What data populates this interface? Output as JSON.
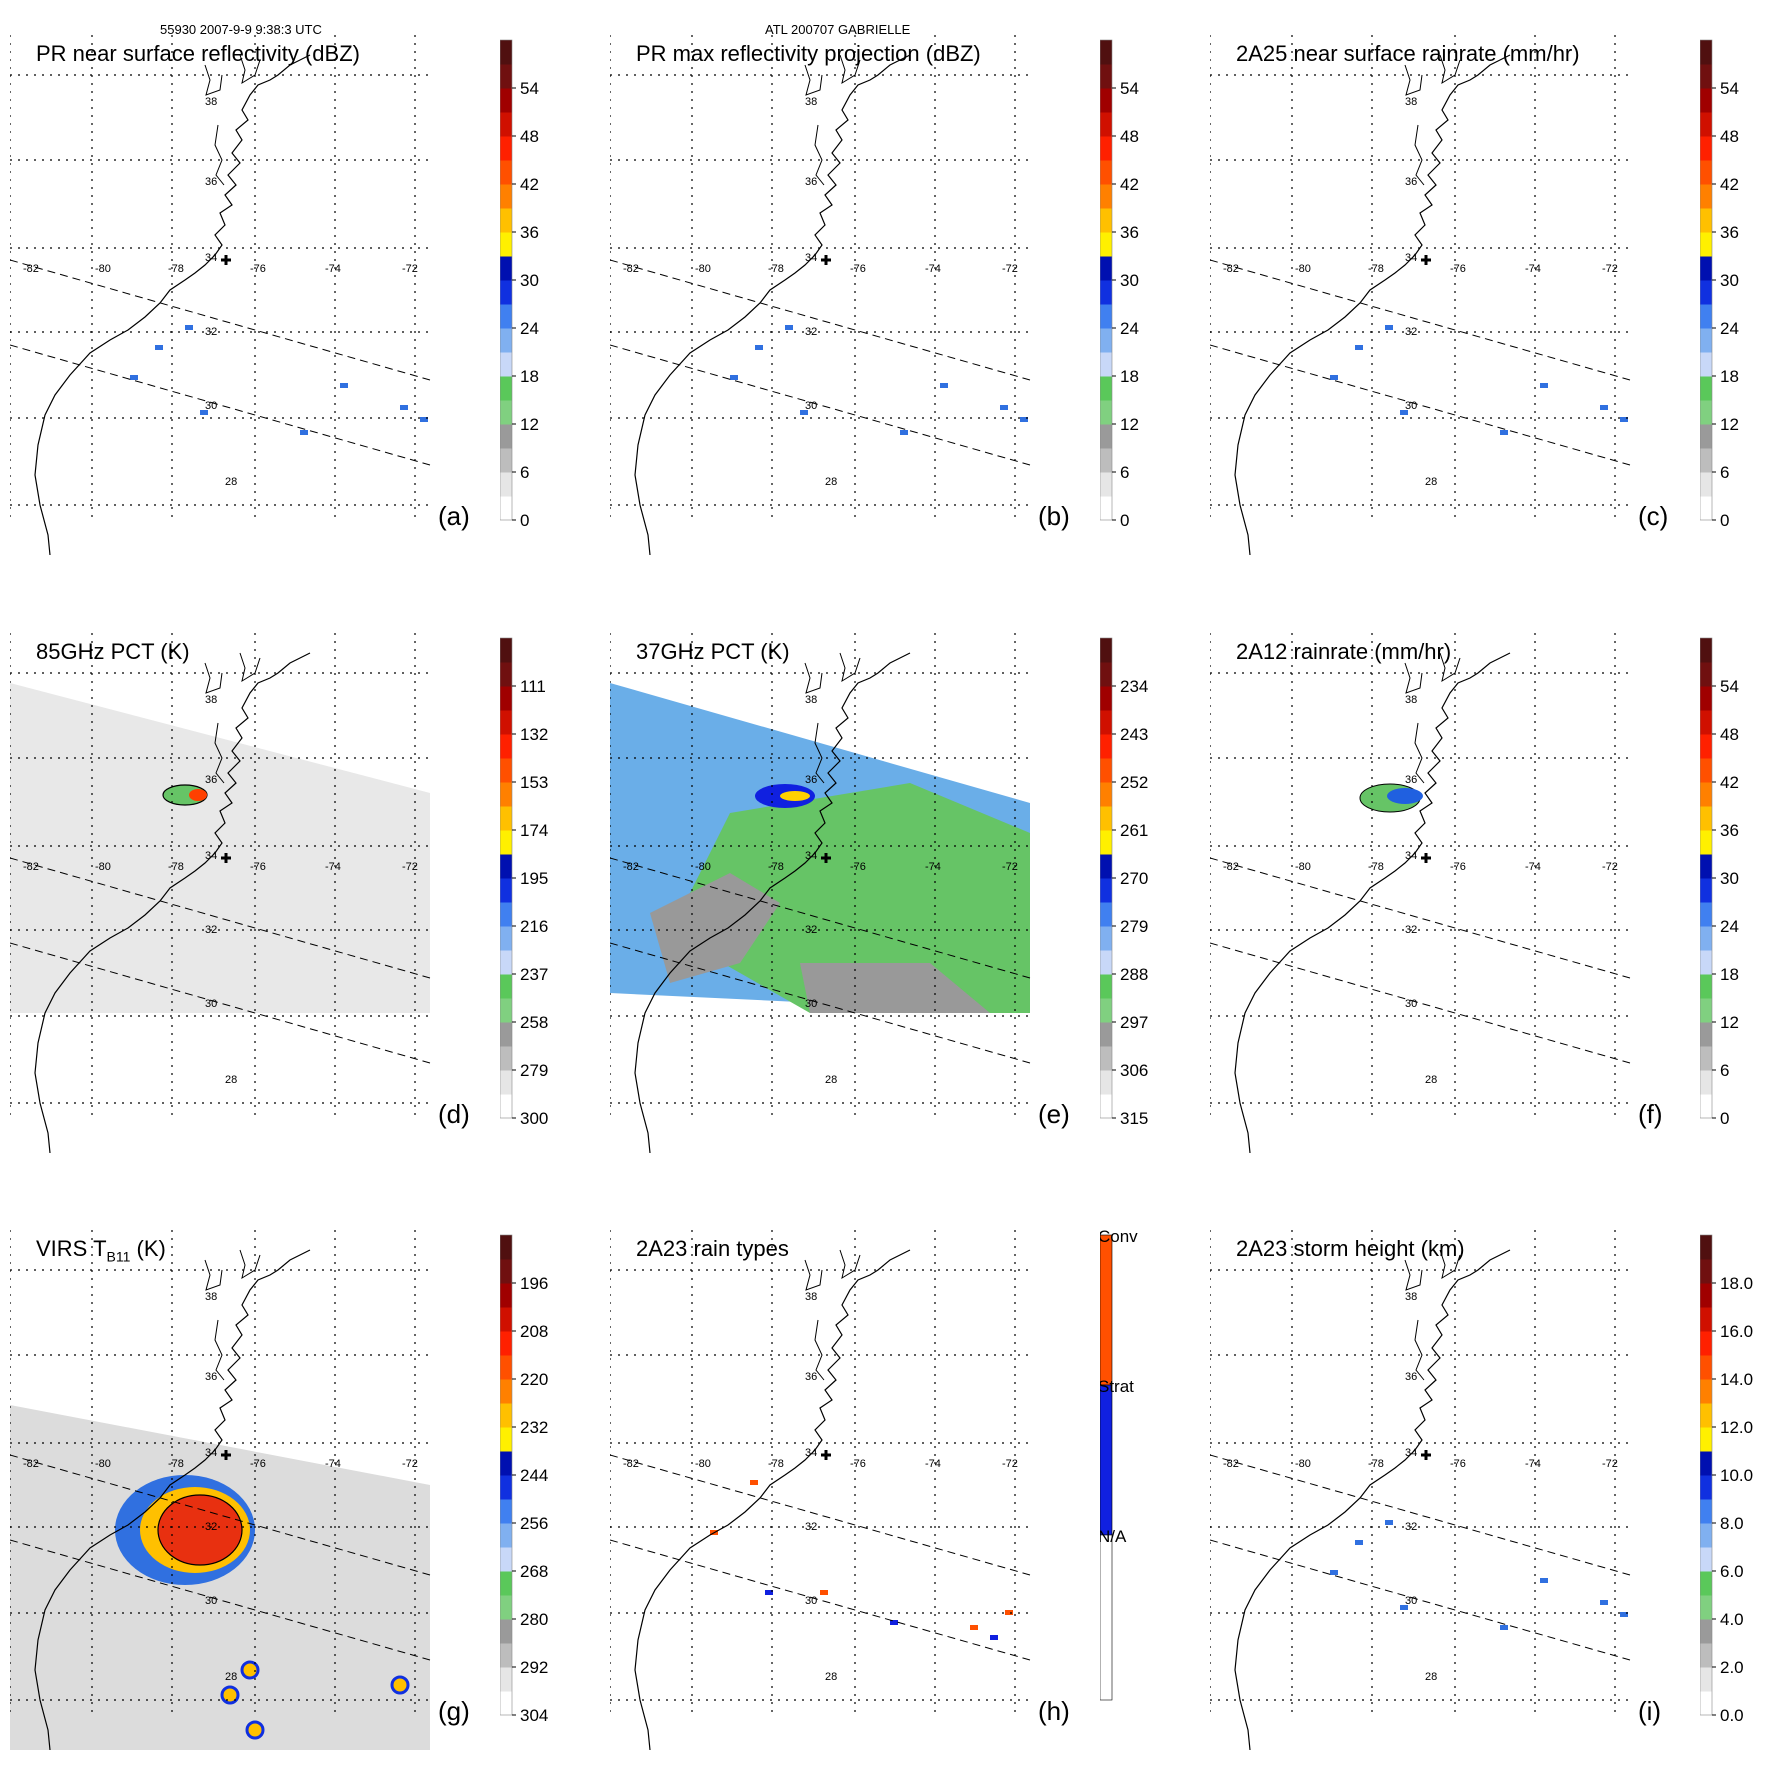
{
  "header": {
    "left": "55930 2007-9-9 9:38:3 UTC",
    "center": "ATL 200707 GABRIELLE"
  },
  "map_labels": {
    "lons": [
      "-82",
      "-80",
      "-78",
      "-76",
      "-74",
      "-72"
    ],
    "lats": [
      "36",
      "34",
      "32",
      "30",
      "28"
    ],
    "lat_38": "38"
  },
  "panels": [
    {
      "id": "a",
      "title": "PR near surface reflectivity (dBZ)",
      "label": "(a)",
      "ticks": [
        "54",
        "48",
        "42",
        "36",
        "30",
        "24",
        "18",
        "12",
        "6",
        "0"
      ],
      "field": "swath"
    },
    {
      "id": "b",
      "title": "PR max reflectivity projection (dBZ)",
      "label": "(b)",
      "ticks": [
        "54",
        "48",
        "42",
        "36",
        "30",
        "24",
        "18",
        "12",
        "6",
        "0"
      ],
      "field": "swath"
    },
    {
      "id": "c",
      "title": "2A25 near surface rainrate (mm/hr)",
      "label": "(c)",
      "ticks": [
        "54",
        "48",
        "42",
        "36",
        "30",
        "24",
        "18",
        "12",
        "6",
        "0"
      ],
      "field": "swath"
    },
    {
      "id": "d",
      "title": "85GHz PCT (K)",
      "label": "(d)",
      "ticks": [
        "111",
        "132",
        "153",
        "174",
        "195",
        "216",
        "237",
        "258",
        "279",
        "300"
      ],
      "field": "tmi_gray"
    },
    {
      "id": "e",
      "title": "37GHz PCT (K)",
      "label": "(e)",
      "ticks": [
        "234",
        "243",
        "252",
        "261",
        "270",
        "279",
        "288",
        "297",
        "306",
        "315"
      ],
      "field": "tmi_color"
    },
    {
      "id": "f",
      "title": "2A12 rainrate (mm/hr)",
      "label": "(f)",
      "ticks": [
        "54",
        "48",
        "42",
        "36",
        "30",
        "24",
        "18",
        "12",
        "6",
        "0"
      ],
      "field": "tmi_rain"
    },
    {
      "id": "g",
      "title": "VIRS T",
      "title_sub": "B11",
      "title_tail": " (K)",
      "label": "(g)",
      "ticks": [
        "196",
        "208",
        "220",
        "232",
        "244",
        "256",
        "268",
        "280",
        "292",
        "304"
      ],
      "field": "virs"
    },
    {
      "id": "h",
      "title": "2A23 rain types",
      "label": "(h)",
      "ticks": [
        "Conv",
        "Strat",
        "N/A"
      ],
      "field": "types"
    },
    {
      "id": "i",
      "title": "2A23 storm height (km)",
      "label": "(i)",
      "ticks": [
        "18.0",
        "16.0",
        "14.0",
        "12.0",
        "10.0",
        "8.0",
        "6.0",
        "4.0",
        "2.0",
        "0.0"
      ],
      "field": "swath"
    }
  ],
  "colors": {
    "scale": [
      "#ffffff",
      "#e6e6e6",
      "#bdbdbd",
      "#9a9a9a",
      "#80d080",
      "#5ac85a",
      "#c8d8f8",
      "#80b0f0",
      "#4080f0",
      "#1030e0",
      "#0010b0",
      "#fff000",
      "#ffc000",
      "#ff8000",
      "#ff5000",
      "#ff2000",
      "#d01000",
      "#a00000",
      "#701010",
      "#501010"
    ],
    "types": {
      "conv": "#ff5000",
      "strat": "#1020e0",
      "na": "#ffffff"
    }
  }
}
